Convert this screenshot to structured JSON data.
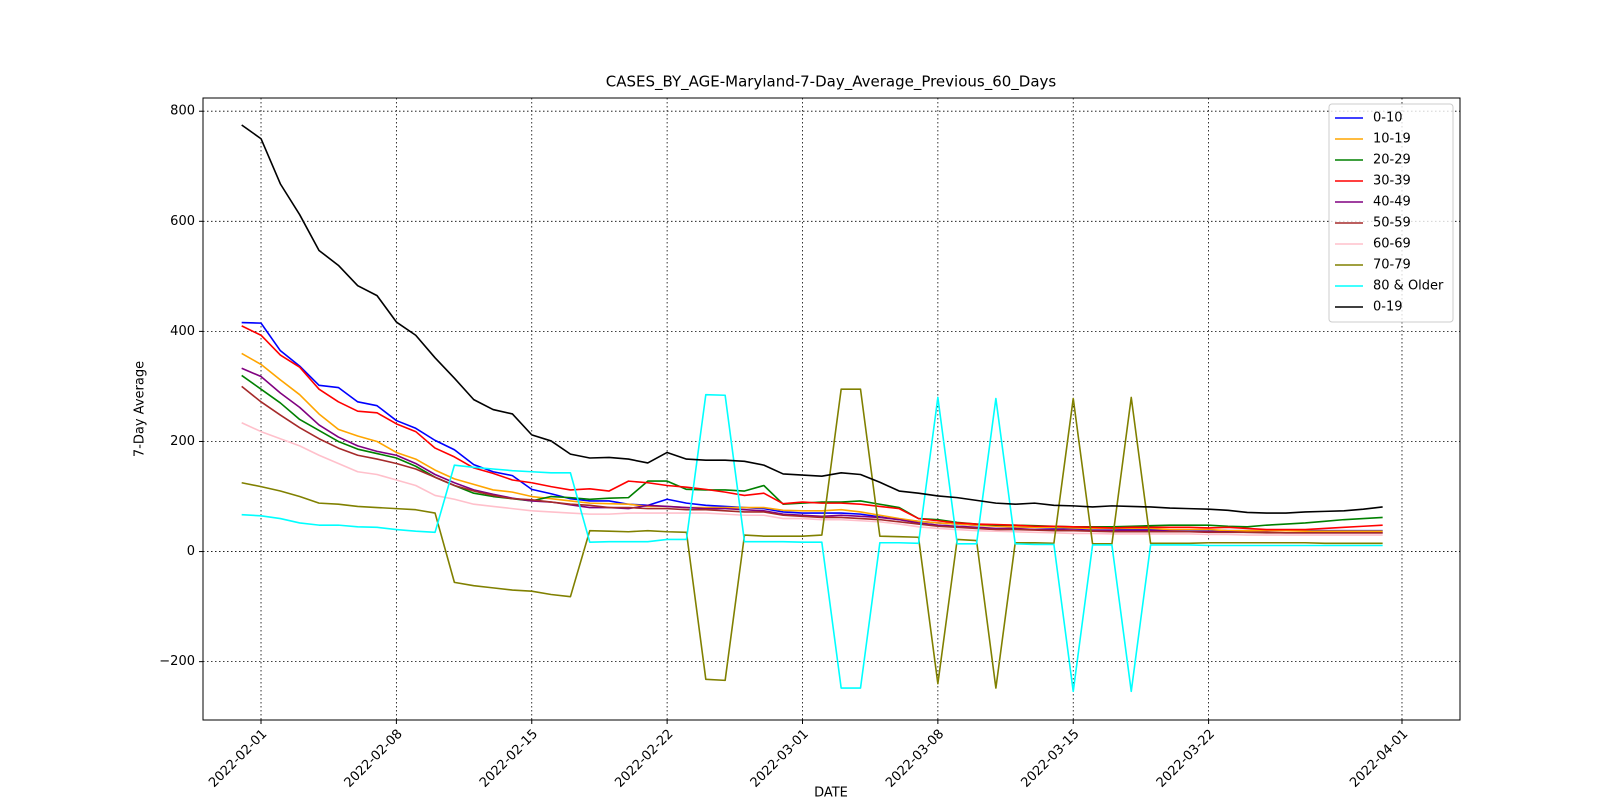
{
  "chart_data": {
    "type": "line",
    "title": "CASES_BY_AGE-Maryland-7-Day_Average_Previous_60_Days",
    "x_label": "DATE",
    "y_label": "7-Day Average",
    "x": [
      "2022-01-31",
      "2022-02-01",
      "2022-02-02",
      "2022-02-03",
      "2022-02-04",
      "2022-02-05",
      "2022-02-06",
      "2022-02-07",
      "2022-02-08",
      "2022-02-09",
      "2022-02-10",
      "2022-02-11",
      "2022-02-12",
      "2022-02-13",
      "2022-02-14",
      "2022-02-15",
      "2022-02-16",
      "2022-02-17",
      "2022-02-18",
      "2022-02-19",
      "2022-02-20",
      "2022-02-21",
      "2022-02-22",
      "2022-02-23",
      "2022-02-24",
      "2022-02-25",
      "2022-02-26",
      "2022-02-27",
      "2022-02-28",
      "2022-03-01",
      "2022-03-02",
      "2022-03-03",
      "2022-03-04",
      "2022-03-05",
      "2022-03-06",
      "2022-03-07",
      "2022-03-08",
      "2022-03-09",
      "2022-03-10",
      "2022-03-11",
      "2022-03-12",
      "2022-03-13",
      "2022-03-14",
      "2022-03-15",
      "2022-03-16",
      "2022-03-17",
      "2022-03-18",
      "2022-03-19",
      "2022-03-20",
      "2022-03-21",
      "2022-03-22",
      "2022-03-23",
      "2022-03-24",
      "2022-03-25",
      "2022-03-26",
      "2022-03-27",
      "2022-03-28",
      "2022-03-29",
      "2022-03-30",
      "2022-03-31"
    ],
    "xlim": [
      "2022-01-29",
      "2022-04-04"
    ],
    "xticks": [
      "2022-02-01",
      "2022-02-08",
      "2022-02-15",
      "2022-02-22",
      "2022-03-01",
      "2022-03-08",
      "2022-03-15",
      "2022-03-22",
      "2022-04-01"
    ],
    "ylim": [
      -306,
      824
    ],
    "yticks": [
      {
        "value": -200,
        "label": "−200"
      },
      0,
      200,
      400,
      600,
      800
    ],
    "grid": true,
    "legend": "upper right",
    "series": [
      {
        "name": "0-10",
        "color": "#0000ff",
        "values": [
          416,
          415,
          365,
          337,
          302,
          298,
          272,
          265,
          238,
          224,
          202,
          185,
          158,
          145,
          138,
          113,
          105,
          96,
          92,
          92,
          86,
          84,
          95,
          88,
          84,
          82,
          80,
          78,
          72,
          70,
          70,
          70,
          68,
          63,
          58,
          55,
          52,
          50,
          48,
          47,
          45,
          44,
          43,
          42,
          41,
          41,
          40,
          40,
          39,
          39,
          39,
          38,
          38,
          38,
          38,
          38,
          38,
          38,
          38,
          38
        ]
      },
      {
        "name": "10-19",
        "color": "#ffa500",
        "values": [
          360,
          340,
          312,
          285,
          250,
          222,
          210,
          200,
          180,
          168,
          148,
          132,
          122,
          112,
          108,
          100,
          96,
          92,
          88,
          87,
          86,
          82,
          82,
          80,
          80,
          80,
          80,
          80,
          75,
          74,
          74,
          76,
          72,
          66,
          60,
          55,
          52,
          50,
          48,
          46,
          45,
          44,
          44,
          43,
          42,
          42,
          42,
          42,
          40,
          40,
          40,
          38,
          38,
          38,
          38,
          37,
          37,
          37,
          37,
          37
        ]
      },
      {
        "name": "20-29",
        "color": "#008000",
        "values": [
          320,
          295,
          270,
          240,
          220,
          200,
          186,
          178,
          170,
          155,
          135,
          120,
          106,
          100,
          96,
          92,
          100,
          98,
          95,
          97,
          98,
          128,
          128,
          113,
          112,
          112,
          110,
          120,
          86,
          88,
          90,
          90,
          92,
          86,
          80,
          60,
          58,
          53,
          50,
          48,
          48,
          47,
          46,
          45,
          45,
          45,
          46,
          47,
          48,
          48,
          48,
          46,
          45,
          48,
          50,
          52,
          55,
          58,
          60,
          62
        ]
      },
      {
        "name": "30-39",
        "color": "#ff0000",
        "values": [
          410,
          393,
          357,
          335,
          295,
          272,
          255,
          252,
          232,
          218,
          188,
          172,
          152,
          142,
          130,
          125,
          118,
          112,
          114,
          110,
          128,
          125,
          120,
          117,
          113,
          108,
          102,
          106,
          87,
          90,
          88,
          88,
          86,
          82,
          78,
          60,
          56,
          52,
          50,
          49,
          48,
          46,
          46,
          45,
          44,
          43,
          44,
          44,
          44,
          44,
          43,
          44,
          42,
          40,
          40,
          40,
          42,
          44,
          46,
          48
        ]
      },
      {
        "name": "40-49",
        "color": "#800080",
        "values": [
          333,
          318,
          288,
          262,
          230,
          208,
          192,
          182,
          175,
          160,
          140,
          125,
          112,
          104,
          97,
          92,
          90,
          85,
          80,
          80,
          78,
          84,
          82,
          80,
          78,
          78,
          76,
          74,
          68,
          66,
          64,
          66,
          64,
          62,
          58,
          52,
          48,
          46,
          44,
          42,
          42,
          40,
          40,
          39,
          38,
          38,
          38,
          38,
          37,
          36,
          36,
          36,
          35,
          35,
          34,
          34,
          34,
          34,
          34,
          34
        ]
      },
      {
        "name": "50-59",
        "color": "#a52a2a",
        "values": [
          300,
          272,
          248,
          225,
          205,
          188,
          175,
          168,
          160,
          150,
          135,
          120,
          110,
          102,
          96,
          94,
          90,
          86,
          84,
          80,
          80,
          78,
          78,
          76,
          76,
          74,
          72,
          72,
          66,
          64,
          62,
          62,
          60,
          58,
          54,
          50,
          46,
          44,
          42,
          40,
          40,
          39,
          38,
          38,
          37,
          36,
          36,
          36,
          36,
          36,
          35,
          35,
          35,
          34,
          34,
          34,
          34,
          34,
          34,
          34
        ]
      },
      {
        "name": "60-69",
        "color": "#ffc0cb",
        "values": [
          234,
          218,
          205,
          192,
          175,
          160,
          145,
          140,
          130,
          120,
          102,
          95,
          86,
          82,
          78,
          74,
          72,
          70,
          68,
          68,
          70,
          70,
          70,
          70,
          70,
          68,
          66,
          66,
          60,
          60,
          58,
          58,
          56,
          54,
          50,
          45,
          42,
          40,
          38,
          37,
          36,
          35,
          34,
          33,
          33,
          32,
          32,
          32,
          32,
          32,
          31,
          31,
          30,
          30,
          30,
          30,
          30,
          30,
          30,
          30
        ]
      },
      {
        "name": "70-79",
        "color": "#808000",
        "values": [
          125,
          118,
          110,
          100,
          88,
          86,
          82,
          80,
          78,
          76,
          70,
          -56,
          -62,
          -66,
          -70,
          -72,
          -78,
          -82,
          38,
          37,
          36,
          38,
          36,
          35,
          -232,
          -234,
          30,
          28,
          28,
          28,
          30,
          295,
          295,
          28,
          27,
          26,
          -240,
          22,
          20,
          -248,
          16,
          16,
          15,
          278,
          14,
          14,
          280,
          15,
          15,
          15,
          16,
          16,
          16,
          16,
          16,
          16,
          15,
          15,
          15,
          15
        ]
      },
      {
        "name": "80 & Older",
        "color": "#00ffff",
        "values": [
          67,
          65,
          60,
          52,
          48,
          48,
          45,
          44,
          40,
          37,
          35,
          157,
          153,
          150,
          147,
          145,
          143,
          143,
          17,
          18,
          18,
          18,
          22,
          22,
          285,
          284,
          18,
          18,
          18,
          17,
          17,
          -248,
          -248,
          16,
          16,
          15,
          280,
          14,
          14,
          278,
          14,
          13,
          13,
          -254,
          12,
          12,
          -254,
          12,
          12,
          12,
          11,
          11,
          11,
          11,
          11,
          11,
          11,
          11,
          11,
          11
        ]
      },
      {
        "name": "0-19",
        "color": "#000000",
        "values": [
          775,
          750,
          668,
          612,
          547,
          520,
          483,
          465,
          417,
          393,
          352,
          315,
          276,
          258,
          250,
          212,
          201,
          177,
          170,
          171,
          168,
          161,
          180,
          168,
          166,
          166,
          164,
          157,
          141,
          139,
          137,
          143,
          140,
          126,
          110,
          106,
          101,
          98,
          93,
          88,
          86,
          88,
          84,
          83,
          81,
          83,
          82,
          81,
          79,
          78,
          77,
          75,
          71,
          70,
          70,
          72,
          73,
          74,
          77,
          81
        ]
      }
    ]
  }
}
